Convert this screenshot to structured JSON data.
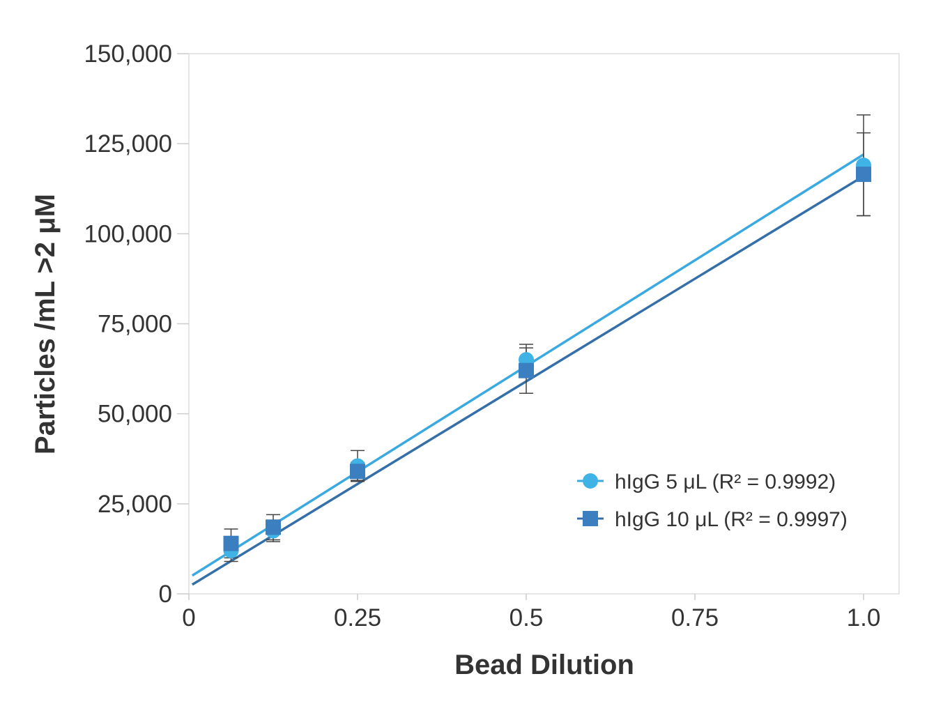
{
  "chart_data": {
    "type": "scatter",
    "xlabel": "Bead Dilution",
    "ylabel": "Particles /mL >2 μM",
    "xlim": [
      0,
      1.05
    ],
    "ylim": [
      0,
      150000
    ],
    "x_ticks": [
      0,
      0.25,
      0.5,
      0.75,
      1.0
    ],
    "x_tick_labels": [
      "0",
      "0.25",
      "0.5",
      "0.75",
      "1.0"
    ],
    "y_ticks": [
      0,
      25000,
      50000,
      75000,
      100000,
      125000,
      150000
    ],
    "y_tick_labels": [
      "0",
      "25,000",
      "50,000",
      "75,000",
      "100,000",
      "125,000",
      "150,000"
    ],
    "grid": false,
    "legend_position": "lower-right",
    "series": [
      {
        "name": "hIgG 5 μL",
        "legend_label": "hIgG 5 μL (R² = 0.9992)",
        "marker": "circle",
        "color": "#3fb3e6",
        "line_color": "#3aa9e0",
        "x": [
          0.0625,
          0.125,
          0.25,
          0.5,
          1.0
        ],
        "y": [
          12000,
          17500,
          35500,
          65000,
          119000
        ],
        "error": [
          3000,
          3000,
          4300,
          4300,
          14000
        ],
        "fit": {
          "slope": 117500,
          "intercept": 4500
        }
      },
      {
        "name": "hIgG 10 μL",
        "legend_label": "hIgG 10 μL (R² = 0.9997)",
        "marker": "square",
        "color": "#3b7fc0",
        "line_color": "#346fa9",
        "x": [
          0.0625,
          0.125,
          0.25,
          0.5,
          1.0
        ],
        "y": [
          14000,
          18500,
          34000,
          62000,
          116500
        ],
        "error": [
          4000,
          3500,
          2500,
          6300,
          11500
        ],
        "fit": {
          "slope": 114000,
          "intercept": 2000
        }
      }
    ]
  }
}
